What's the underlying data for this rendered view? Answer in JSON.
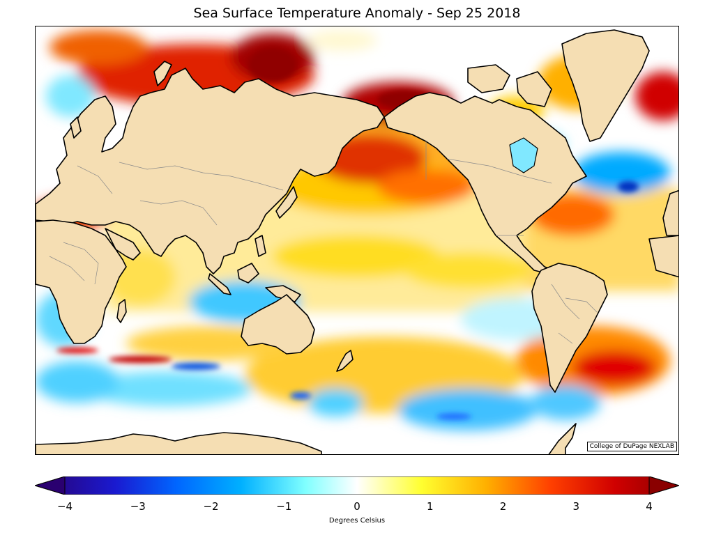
{
  "title": "Sea Surface Temperature Anomaly - Sep 25 2018",
  "credit": "College of DuPage NEXLAB",
  "colorbar": {
    "label": "Degrees Celsius",
    "min": -4,
    "max": 4,
    "ticks": [
      "−4",
      "−3",
      "−2",
      "−1",
      "0",
      "1",
      "2",
      "3",
      "4"
    ],
    "colors": [
      "#2a0070",
      "#1a1ad0",
      "#0066ff",
      "#00b0ff",
      "#80ffff",
      "#ffffff",
      "#ffff30",
      "#ffb000",
      "#ff4000",
      "#d00000",
      "#8a0000"
    ]
  },
  "map": {
    "land_color": "#f5deb3",
    "coast_color": "#000000",
    "border_color": "#8a8a8a"
  }
}
